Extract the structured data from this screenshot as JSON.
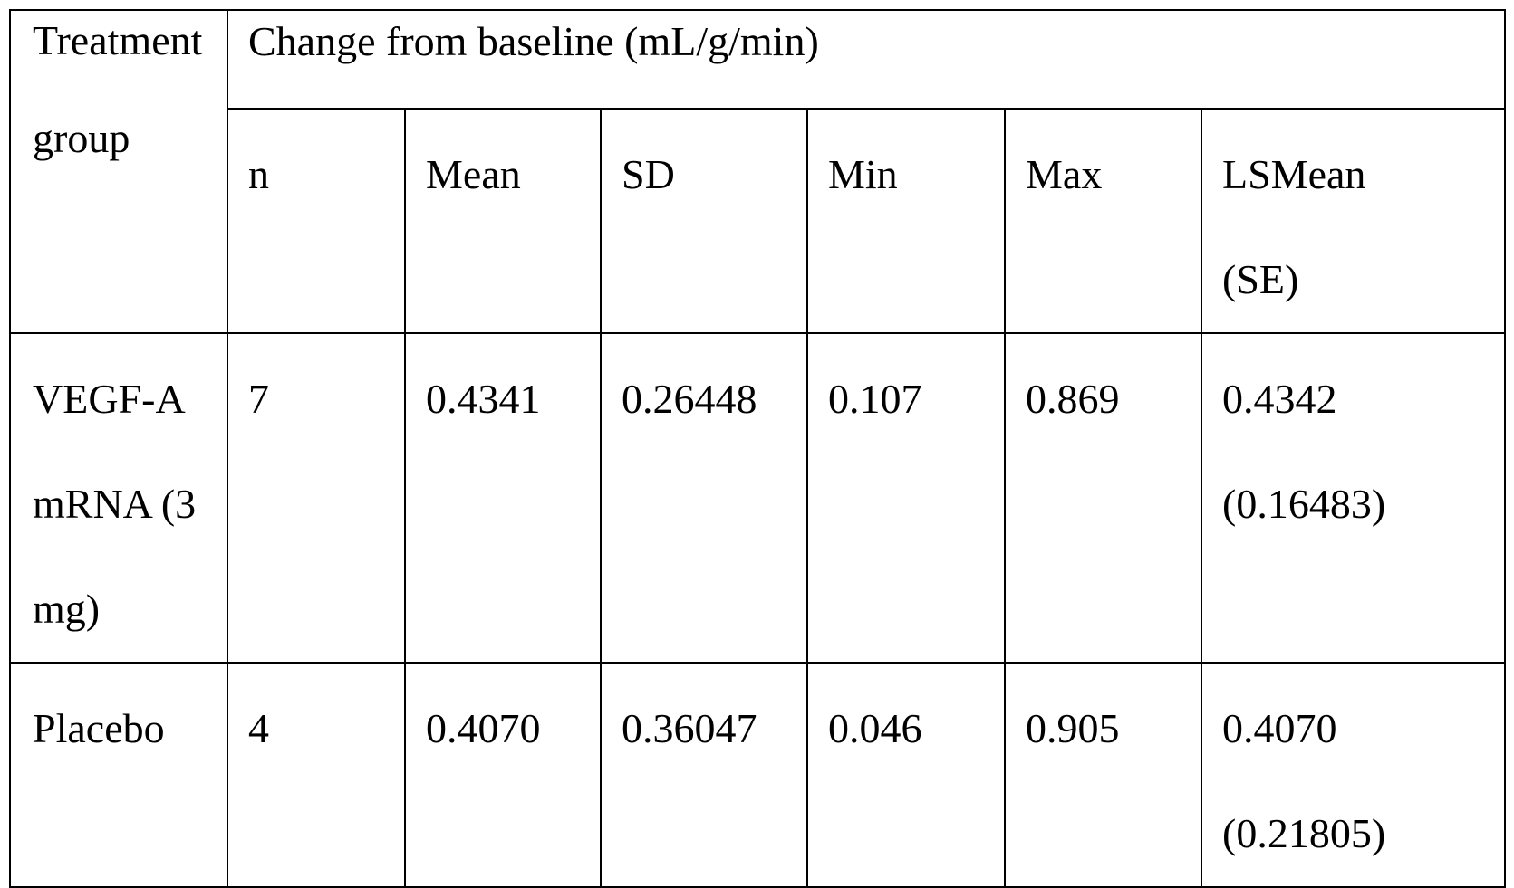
{
  "table": {
    "header": {
      "treatment_group_lines": [
        "Treatment",
        "group"
      ],
      "span_label": "Change from baseline (mL/g/min)",
      "subheaders": {
        "n": "n",
        "mean": "Mean",
        "sd": "SD",
        "min": "Min",
        "max": "Max",
        "lsmean_lines": [
          "LSMean",
          "(SE)"
        ]
      }
    },
    "rows": [
      {
        "group_lines": [
          "VEGF-A",
          "mRNA (3",
          "mg)"
        ],
        "n": "7",
        "mean": "0.4341",
        "sd": "0.26448",
        "min": "0.107",
        "max": "0.869",
        "lsmean_lines": [
          "0.4342",
          "(0.16483)"
        ]
      },
      {
        "group_lines": [
          "Placebo"
        ],
        "n": "4",
        "mean": "0.4070",
        "sd": "0.36047",
        "min": "0.046",
        "max": "0.905",
        "lsmean_lines": [
          "0.4070",
          "(0.21805)"
        ]
      }
    ]
  }
}
